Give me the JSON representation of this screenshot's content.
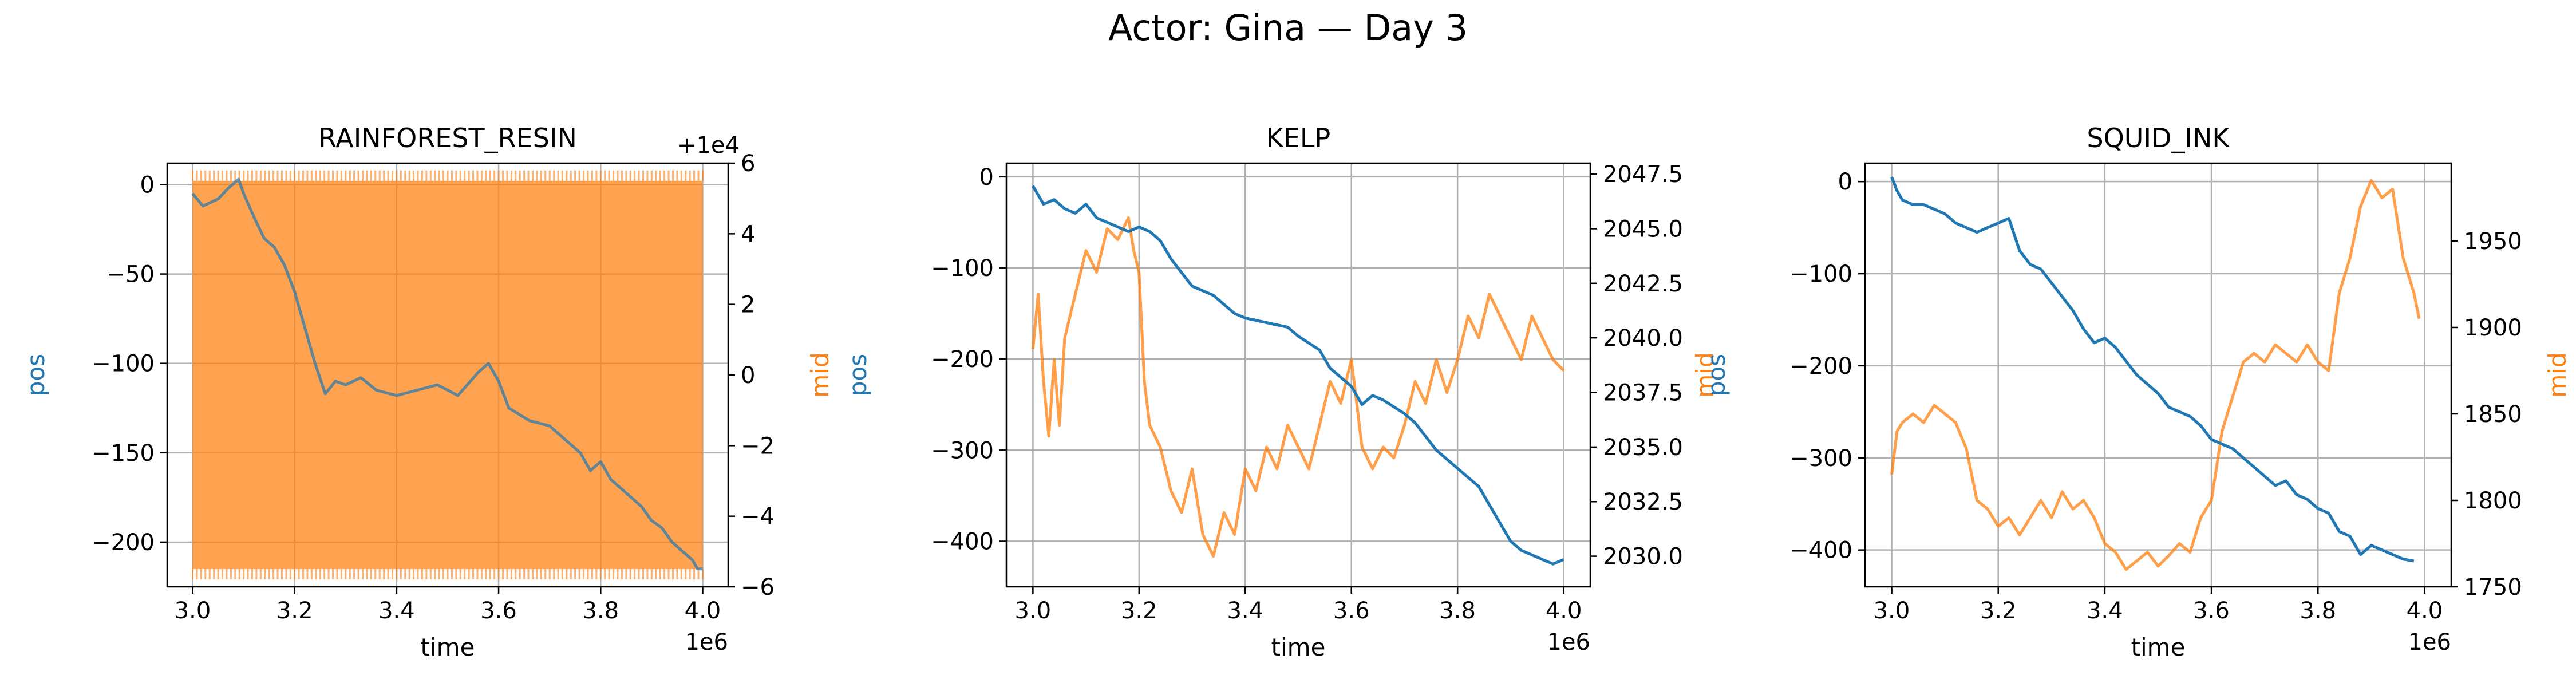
{
  "suptitle": "Actor: Gina — Day 3",
  "colors": {
    "pos": "#1f77b4",
    "mid": "#ff7f0e"
  },
  "chart_data": [
    {
      "type": "line",
      "title": "RAINFOREST_RESIN",
      "xlabel": "time",
      "x_offset_text": "1e6",
      "xlim": [
        2.95,
        4.05
      ],
      "xticks": [
        3.0,
        3.2,
        3.4,
        3.6,
        3.8,
        4.0
      ],
      "xtick_labels": [
        "3.0",
        "3.2",
        "3.4",
        "3.6",
        "3.8",
        "4.0"
      ],
      "grid": true,
      "left_axis": {
        "label": "pos",
        "color": "#1f77b4",
        "ylim": [
          -225,
          12
        ],
        "ticks": [
          0,
          -50,
          -100,
          -150,
          -200
        ],
        "tick_labels": [
          "0",
          "−50",
          "−100",
          "−150",
          "−200"
        ]
      },
      "right_axis": {
        "label": "mid",
        "color": "#ff7f0e",
        "ylim": [
          -6,
          6
        ],
        "offset_text": "+1e4",
        "ticks": [
          6,
          4,
          2,
          0,
          -2,
          -4,
          -6
        ],
        "tick_labels": [
          "6",
          "4",
          "2",
          "0",
          "−2",
          "−4",
          "−6"
        ]
      },
      "series": [
        {
          "axis": "left",
          "color": "#1f77b4",
          "x": [
            3.0,
            3.02,
            3.05,
            3.07,
            3.09,
            3.1,
            3.12,
            3.14,
            3.16,
            3.18,
            3.2,
            3.22,
            3.24,
            3.26,
            3.28,
            3.3,
            3.33,
            3.36,
            3.4,
            3.44,
            3.48,
            3.52,
            3.56,
            3.58,
            3.6,
            3.62,
            3.66,
            3.7,
            3.72,
            3.74,
            3.76,
            3.78,
            3.8,
            3.82,
            3.84,
            3.86,
            3.88,
            3.9,
            3.92,
            3.94,
            3.96,
            3.98,
            3.99,
            4.0
          ],
          "y": [
            -5,
            -12,
            -8,
            -2,
            3,
            -5,
            -18,
            -30,
            -35,
            -45,
            -60,
            -80,
            -100,
            -117,
            -110,
            -112,
            -108,
            -115,
            -118,
            -115,
            -112,
            -118,
            -105,
            -100,
            -110,
            -125,
            -132,
            -135,
            -140,
            -145,
            -150,
            -160,
            -155,
            -165,
            -170,
            -175,
            -180,
            -188,
            -192,
            -200,
            -205,
            -210,
            -215,
            -215
          ]
        },
        {
          "axis": "right",
          "color": "#ff7f0e",
          "style": "band",
          "x_range": [
            3.0,
            4.0
          ],
          "band": [
            -5.5,
            5.5
          ]
        }
      ]
    },
    {
      "type": "line",
      "title": "KELP",
      "xlabel": "time",
      "x_offset_text": "1e6",
      "xlim": [
        2.95,
        4.05
      ],
      "xticks": [
        3.0,
        3.2,
        3.4,
        3.6,
        3.8,
        4.0
      ],
      "xtick_labels": [
        "3.0",
        "3.2",
        "3.4",
        "3.6",
        "3.8",
        "4.0"
      ],
      "grid": true,
      "left_axis": {
        "label": "pos",
        "color": "#1f77b4",
        "ylim": [
          -450,
          15
        ],
        "ticks": [
          0,
          -100,
          -200,
          -300,
          -400
        ],
        "tick_labels": [
          "0",
          "−100",
          "−200",
          "−300",
          "−400"
        ]
      },
      "right_axis": {
        "label": "mid",
        "color": "#ff7f0e",
        "ylim": [
          2028.6,
          2048.0
        ],
        "ticks": [
          2047.5,
          2045.0,
          2042.5,
          2040.0,
          2037.5,
          2035.0,
          2032.5,
          2030.0
        ],
        "tick_labels": [
          "2047.5",
          "2045.0",
          "2042.5",
          "2040.0",
          "2037.5",
          "2035.0",
          "2032.5",
          "2030.0"
        ]
      },
      "series": [
        {
          "axis": "left",
          "color": "#1f77b4",
          "x": [
            3.0,
            3.02,
            3.04,
            3.06,
            3.08,
            3.1,
            3.12,
            3.14,
            3.16,
            3.18,
            3.2,
            3.22,
            3.24,
            3.26,
            3.28,
            3.3,
            3.34,
            3.38,
            3.4,
            3.44,
            3.48,
            3.5,
            3.54,
            3.56,
            3.6,
            3.62,
            3.64,
            3.66,
            3.7,
            3.72,
            3.76,
            3.78,
            3.8,
            3.82,
            3.84,
            3.86,
            3.88,
            3.9,
            3.92,
            3.94,
            3.96,
            3.98,
            4.0
          ],
          "y": [
            -10,
            -30,
            -25,
            -35,
            -40,
            -30,
            -45,
            -50,
            -55,
            -60,
            -55,
            -60,
            -70,
            -90,
            -105,
            -120,
            -130,
            -150,
            -155,
            -160,
            -165,
            -175,
            -190,
            -210,
            -230,
            -250,
            -240,
            -245,
            -260,
            -270,
            -300,
            -310,
            -320,
            -330,
            -340,
            -360,
            -380,
            -400,
            -410,
            -415,
            -420,
            -425,
            -420
          ]
        },
        {
          "axis": "right",
          "color": "#ff7f0e",
          "x": [
            3.0,
            3.01,
            3.02,
            3.03,
            3.04,
            3.05,
            3.06,
            3.08,
            3.1,
            3.12,
            3.14,
            3.16,
            3.18,
            3.19,
            3.2,
            3.21,
            3.22,
            3.24,
            3.26,
            3.28,
            3.3,
            3.32,
            3.34,
            3.36,
            3.38,
            3.4,
            3.42,
            3.44,
            3.46,
            3.48,
            3.5,
            3.52,
            3.54,
            3.56,
            3.58,
            3.6,
            3.62,
            3.64,
            3.66,
            3.68,
            3.7,
            3.72,
            3.74,
            3.76,
            3.78,
            3.8,
            3.82,
            3.84,
            3.86,
            3.88,
            3.9,
            3.92,
            3.94,
            3.96,
            3.98,
            4.0
          ],
          "y": [
            2039.5,
            2042,
            2038,
            2035.5,
            2039,
            2036,
            2040,
            2042,
            2044,
            2043,
            2045,
            2044.5,
            2045.5,
            2044,
            2043,
            2038,
            2036,
            2035,
            2033,
            2032,
            2034,
            2031,
            2030,
            2032,
            2031,
            2034,
            2033,
            2035,
            2034,
            2036,
            2035,
            2034,
            2036,
            2038,
            2037,
            2039,
            2035,
            2034,
            2035,
            2034.5,
            2036,
            2038,
            2037,
            2039,
            2037.5,
            2039,
            2041,
            2040,
            2042,
            2041,
            2040,
            2039,
            2041,
            2040,
            2039,
            2038.5
          ]
        }
      ]
    },
    {
      "type": "line",
      "title": "SQUID_INK",
      "xlabel": "time",
      "x_offset_text": "1e6",
      "xlim": [
        2.95,
        4.05
      ],
      "xticks": [
        3.0,
        3.2,
        3.4,
        3.6,
        3.8,
        4.0
      ],
      "xtick_labels": [
        "3.0",
        "3.2",
        "3.4",
        "3.6",
        "3.8",
        "4.0"
      ],
      "grid": true,
      "left_axis": {
        "label": "pos",
        "color": "#1f77b4",
        "ylim": [
          -440,
          20
        ],
        "ticks": [
          0,
          -100,
          -200,
          -300,
          -400
        ],
        "tick_labels": [
          "0",
          "−100",
          "−200",
          "−300",
          "−400"
        ]
      },
      "right_axis": {
        "label": "mid",
        "color": "#ff7f0e",
        "ylim": [
          1750,
          1995
        ],
        "ticks": [
          1950,
          1900,
          1850,
          1800,
          1750
        ],
        "tick_labels": [
          "1950",
          "1900",
          "1850",
          "1800",
          "1750"
        ]
      },
      "series": [
        {
          "axis": "left",
          "color": "#1f77b4",
          "x": [
            3.0,
            3.01,
            3.02,
            3.04,
            3.06,
            3.08,
            3.1,
            3.12,
            3.14,
            3.16,
            3.18,
            3.2,
            3.22,
            3.24,
            3.26,
            3.28,
            3.3,
            3.32,
            3.34,
            3.36,
            3.38,
            3.4,
            3.42,
            3.44,
            3.46,
            3.48,
            3.5,
            3.52,
            3.54,
            3.56,
            3.58,
            3.6,
            3.62,
            3.64,
            3.66,
            3.68,
            3.7,
            3.72,
            3.74,
            3.76,
            3.78,
            3.8,
            3.82,
            3.84,
            3.86,
            3.88,
            3.9,
            3.92,
            3.94,
            3.96,
            3.98
          ],
          "y": [
            5,
            -10,
            -20,
            -25,
            -25,
            -30,
            -35,
            -45,
            -50,
            -55,
            -50,
            -45,
            -40,
            -75,
            -90,
            -95,
            -110,
            -125,
            -140,
            -160,
            -175,
            -170,
            -180,
            -195,
            -210,
            -220,
            -230,
            -245,
            -250,
            -255,
            -265,
            -280,
            -285,
            -290,
            -300,
            -310,
            -320,
            -330,
            -325,
            -340,
            -345,
            -355,
            -360,
            -380,
            -385,
            -405,
            -395,
            -400,
            -405,
            -410,
            -412
          ]
        },
        {
          "axis": "right",
          "color": "#ff7f0e",
          "x": [
            3.0,
            3.01,
            3.02,
            3.04,
            3.06,
            3.08,
            3.1,
            3.12,
            3.14,
            3.16,
            3.18,
            3.2,
            3.22,
            3.24,
            3.26,
            3.28,
            3.3,
            3.32,
            3.34,
            3.36,
            3.38,
            3.4,
            3.42,
            3.44,
            3.46,
            3.48,
            3.5,
            3.52,
            3.54,
            3.56,
            3.58,
            3.6,
            3.62,
            3.64,
            3.66,
            3.68,
            3.7,
            3.72,
            3.74,
            3.76,
            3.78,
            3.8,
            3.82,
            3.84,
            3.86,
            3.88,
            3.9,
            3.92,
            3.94,
            3.96,
            3.98,
            3.99
          ],
          "y": [
            1815,
            1840,
            1845,
            1850,
            1845,
            1855,
            1850,
            1845,
            1830,
            1800,
            1795,
            1785,
            1790,
            1780,
            1790,
            1800,
            1790,
            1805,
            1795,
            1800,
            1790,
            1775,
            1770,
            1760,
            1765,
            1770,
            1762,
            1768,
            1775,
            1770,
            1790,
            1800,
            1840,
            1860,
            1880,
            1885,
            1880,
            1890,
            1885,
            1880,
            1890,
            1880,
            1875,
            1920,
            1940,
            1970,
            1985,
            1975,
            1980,
            1940,
            1920,
            1905
          ]
        }
      ]
    }
  ]
}
